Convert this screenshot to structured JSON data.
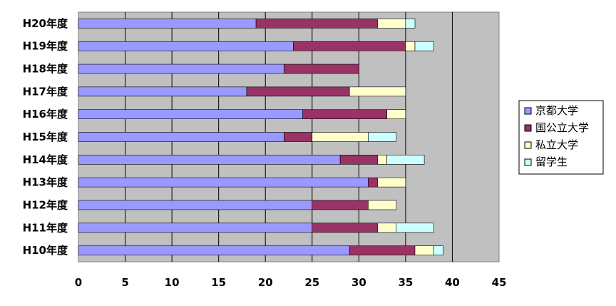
{
  "chart_data": {
    "type": "bar",
    "orientation": "horizontal",
    "stacked": true,
    "title": "",
    "xlabel": "",
    "ylabel": "",
    "xlim": [
      0,
      45
    ],
    "x_ticks": [
      0,
      5,
      10,
      15,
      20,
      25,
      30,
      35,
      40,
      45
    ],
    "grid": true,
    "legend_position": "right",
    "plot_background": "#C0C0C0",
    "categories": [
      "H20年度",
      "H19年度",
      "H18年度",
      "H17年度",
      "H16年度",
      "H15年度",
      "H14年度",
      "H13年度",
      "H12年度",
      "H11年度",
      "H10年度"
    ],
    "series": [
      {
        "name": "京都大学",
        "color": "#9999FF",
        "values": [
          19,
          23,
          22,
          18,
          24,
          22,
          28,
          31,
          25,
          25,
          29
        ]
      },
      {
        "name": "国公立大学",
        "color": "#993366",
        "values": [
          13,
          12,
          8,
          11,
          9,
          3,
          4,
          1,
          6,
          7,
          7
        ]
      },
      {
        "name": "私立大学",
        "color": "#FFFFCC",
        "values": [
          3,
          1,
          0,
          6,
          2,
          6,
          1,
          3,
          3,
          2,
          2
        ]
      },
      {
        "name": "留学生",
        "color": "#CCFFFF",
        "values": [
          1,
          2,
          0,
          0,
          0,
          3,
          4,
          0,
          0,
          4,
          1
        ]
      }
    ]
  }
}
